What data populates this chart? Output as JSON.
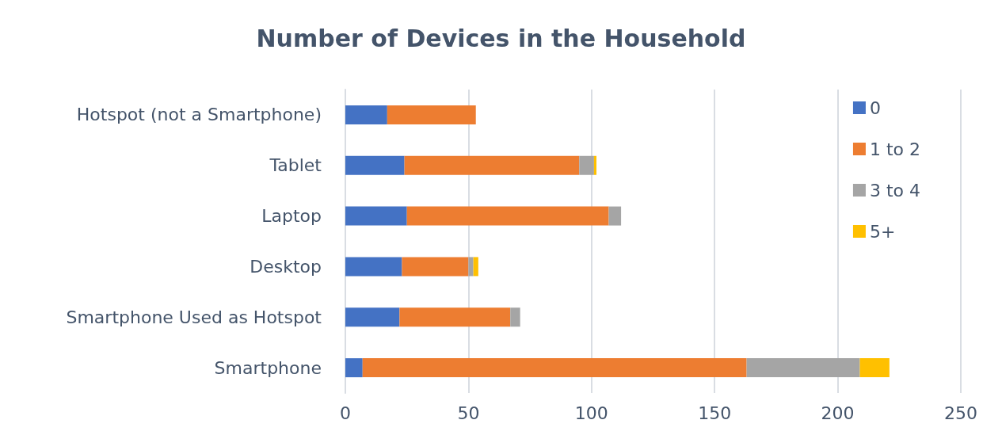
{
  "chart_data": {
    "type": "bar",
    "orientation": "horizontal",
    "stacked": true,
    "title": "Number of Devices in the Household",
    "categories": [
      "Hotspot (not a Smartphone)",
      "Tablet",
      "Laptop",
      "Desktop",
      "Smartphone Used as Hotspot",
      "Smartphone"
    ],
    "series": [
      {
        "name": "0",
        "color": "#4472c4",
        "values": [
          17,
          24,
          25,
          23,
          22,
          7
        ]
      },
      {
        "name": "1 to 2",
        "color": "#ed7d31",
        "values": [
          36,
          71,
          82,
          27,
          45,
          156
        ]
      },
      {
        "name": "3 to 4",
        "color": "#a5a5a5",
        "values": [
          0,
          6,
          5,
          2,
          4,
          46
        ]
      },
      {
        "name": "5+",
        "color": "#ffc000",
        "values": [
          0,
          1,
          0,
          2,
          0,
          12
        ]
      }
    ],
    "xlim": [
      0,
      250
    ],
    "xticks": [
      0,
      50,
      100,
      150,
      200,
      250
    ],
    "grid": "x",
    "legend": "top right"
  }
}
